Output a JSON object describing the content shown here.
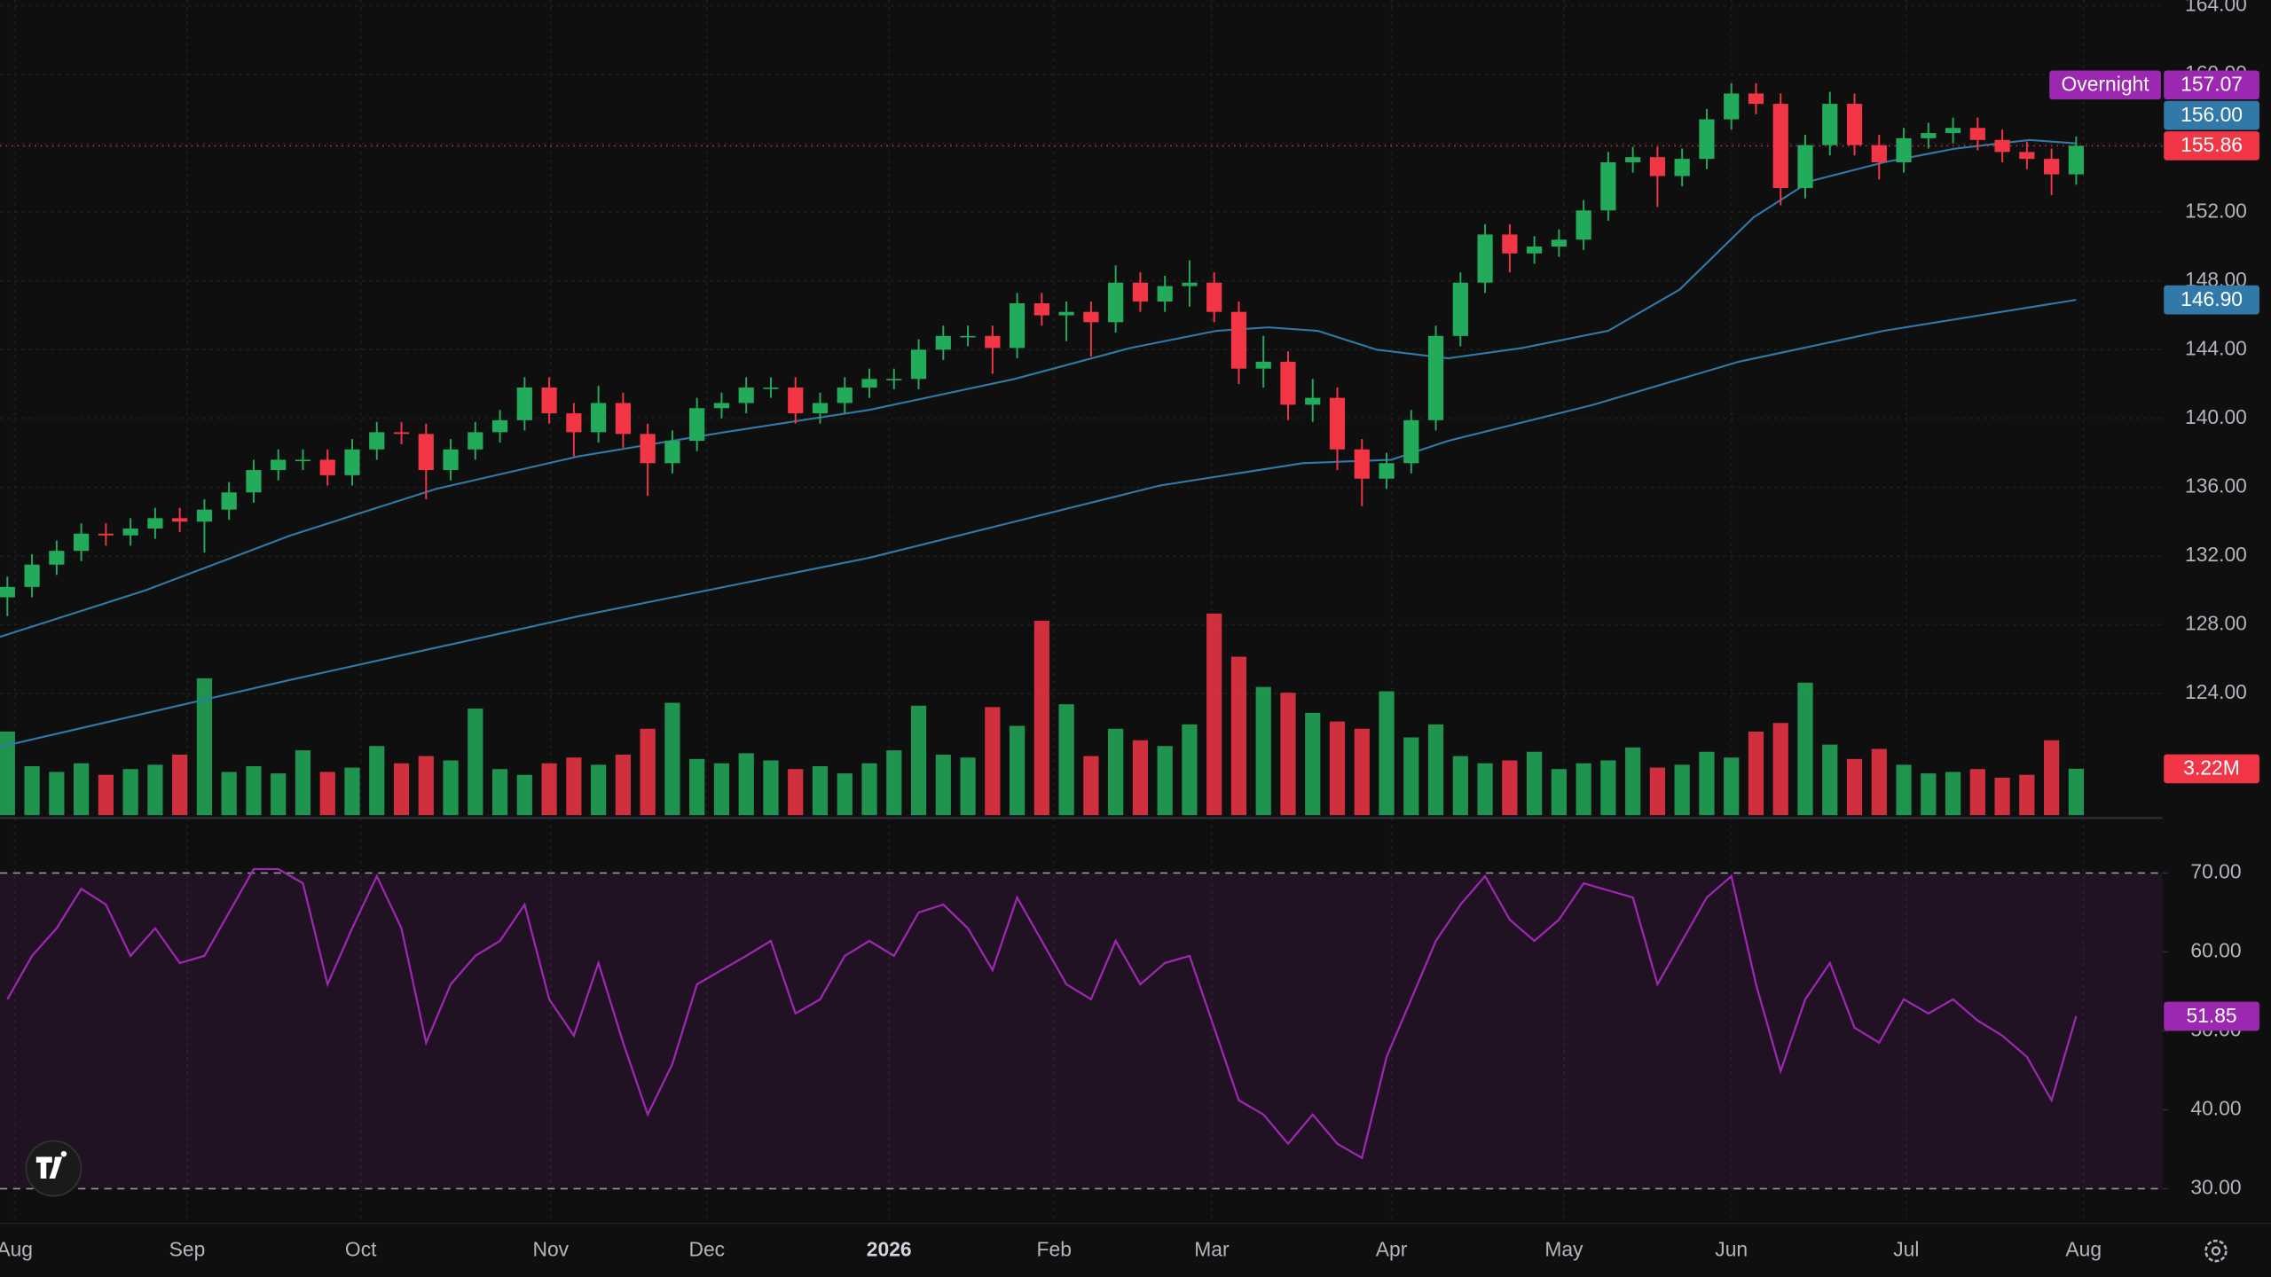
{
  "chart_data": {
    "type": "candlestick",
    "xlim": [
      -0.3,
      87.5
    ],
    "xticks": [
      {
        "value": 0.3,
        "label": "Aug"
      },
      {
        "value": 7.3,
        "label": "Sep"
      },
      {
        "value": 14.35,
        "label": "Oct"
      },
      {
        "value": 22.06,
        "label": "Nov"
      },
      {
        "value": 28.4,
        "label": "Dec"
      },
      {
        "value": 35.8,
        "label": "2026"
      },
      {
        "value": 42.5,
        "label": "Feb"
      },
      {
        "value": 48.9,
        "label": "Mar"
      },
      {
        "value": 56.2,
        "label": "Apr"
      },
      {
        "value": 63.2,
        "label": "May"
      },
      {
        "value": 70,
        "label": "Jun"
      },
      {
        "value": 77.1,
        "label": "Jul"
      },
      {
        "value": 84.3,
        "label": "Aug"
      }
    ],
    "ylim": [
      116.76,
      164.34
    ],
    "yticks": [
      {
        "value": 124,
        "label": "124.00"
      },
      {
        "value": 128,
        "label": "128.00"
      },
      {
        "value": 132,
        "label": "132.00"
      },
      {
        "value": 136,
        "label": "136.00"
      },
      {
        "value": 140,
        "label": "140.00"
      },
      {
        "value": 144,
        "label": "144.00"
      },
      {
        "value": 148,
        "label": "148.00"
      },
      {
        "value": 152,
        "label": "152.00"
      },
      {
        "value": 156,
        "label": "156.00"
      },
      {
        "value": 160,
        "label": "160.00"
      },
      {
        "value": 164,
        "label": "164.00"
      }
    ],
    "grid": true,
    "up_color": "#22ab5a",
    "down_color": "#f23645",
    "ohlc": {
      "open": [
        129.6,
        130.2,
        131.5,
        132.3,
        133.3,
        133.2,
        133.6,
        134.2,
        134.0,
        134.7,
        135.7,
        137.0,
        137.6,
        137.6,
        136.7,
        138.2,
        139.2,
        139.1,
        137.0,
        138.2,
        139.2,
        139.9,
        141.8,
        140.3,
        139.2,
        140.9,
        139.1,
        137.4,
        138.7,
        140.6,
        140.9,
        141.8,
        141.8,
        140.3,
        140.9,
        141.8,
        142.3,
        142.3,
        144.0,
        144.8,
        144.8,
        144.1,
        146.7,
        146.0,
        146.2,
        145.6,
        147.9,
        146.8,
        147.7,
        147.9,
        146.2,
        142.9,
        143.3,
        140.8,
        141.2,
        138.2,
        136.5,
        137.4,
        139.9,
        144.8,
        147.9,
        150.7,
        149.6,
        150.0,
        150.4,
        152.1,
        154.9,
        155.2,
        154.1,
        155.1,
        157.4,
        158.9,
        158.3,
        153.4,
        155.9,
        158.3,
        155.9,
        154.9,
        156.3,
        156.6,
        156.9,
        156.2,
        155.5,
        155.1,
        154.2
      ],
      "high": [
        130.8,
        132.1,
        132.9,
        133.9,
        133.9,
        134.2,
        134.8,
        134.8,
        135.3,
        136.3,
        137.6,
        138.2,
        138.2,
        138.2,
        138.8,
        139.8,
        139.8,
        139.7,
        138.8,
        139.8,
        140.5,
        142.4,
        142.4,
        140.9,
        141.9,
        141.5,
        139.7,
        139.3,
        141.2,
        141.5,
        142.4,
        142.4,
        142.4,
        141.5,
        142.4,
        142.9,
        142.9,
        144.6,
        145.4,
        145.4,
        145.4,
        147.3,
        147.3,
        146.8,
        146.8,
        148.9,
        148.5,
        148.3,
        149.2,
        148.5,
        146.8,
        144.8,
        143.9,
        142.3,
        141.8,
        138.8,
        138.0,
        140.5,
        145.4,
        148.5,
        151.3,
        151.3,
        150.6,
        151.0,
        152.7,
        155.5,
        155.8,
        155.8,
        155.7,
        158.0,
        159.5,
        159.5,
        158.9,
        156.5,
        159.0,
        158.9,
        156.5,
        156.9,
        157.2,
        157.5,
        157.5,
        156.8,
        156.1,
        155.7,
        156.4
      ],
      "low": [
        128.5,
        129.6,
        130.9,
        131.7,
        132.6,
        132.6,
        133.0,
        133.4,
        132.2,
        134.1,
        135.1,
        136.4,
        137.0,
        136.1,
        136.1,
        137.6,
        138.5,
        135.3,
        136.4,
        137.6,
        138.6,
        139.3,
        139.7,
        137.8,
        138.6,
        138.3,
        135.5,
        136.8,
        138.1,
        140.0,
        140.3,
        141.2,
        139.7,
        139.7,
        140.3,
        141.2,
        141.7,
        141.7,
        143.4,
        144.2,
        142.6,
        143.5,
        145.4,
        144.5,
        143.6,
        145.0,
        146.2,
        146.2,
        146.5,
        145.6,
        142.0,
        141.8,
        139.9,
        139.8,
        137.0,
        134.9,
        135.9,
        136.8,
        139.3,
        144.2,
        147.3,
        148.5,
        149.0,
        149.4,
        149.8,
        151.5,
        154.3,
        152.3,
        153.5,
        154.5,
        156.8,
        157.7,
        152.4,
        152.8,
        155.3,
        155.3,
        153.9,
        154.3,
        155.7,
        156.0,
        155.6,
        154.9,
        154.5,
        153.0,
        153.6
      ],
      "close": [
        130.2,
        131.5,
        132.3,
        133.3,
        133.2,
        133.6,
        134.2,
        134.0,
        134.7,
        135.7,
        137.0,
        137.6,
        137.6,
        136.7,
        138.2,
        139.2,
        139.1,
        137.0,
        138.2,
        139.2,
        139.9,
        141.8,
        140.3,
        139.2,
        140.9,
        139.1,
        137.4,
        138.7,
        140.6,
        140.9,
        141.8,
        141.8,
        140.3,
        140.9,
        141.8,
        142.3,
        142.3,
        144.0,
        144.8,
        144.8,
        144.1,
        146.7,
        146.0,
        146.2,
        145.6,
        147.9,
        146.8,
        147.7,
        147.9,
        146.2,
        142.9,
        143.3,
        140.8,
        141.2,
        138.2,
        136.5,
        137.4,
        139.9,
        144.8,
        147.9,
        150.7,
        149.6,
        150.0,
        150.4,
        152.1,
        154.9,
        155.2,
        154.1,
        155.1,
        157.4,
        158.9,
        158.3,
        153.4,
        155.9,
        158.3,
        155.9,
        154.9,
        156.3,
        156.6,
        156.9,
        156.2,
        155.5,
        155.1,
        154.2,
        155.86
      ]
    },
    "moving_averages": [
      {
        "color": "#3179a8",
        "x": [
          -0.3,
          5.6,
          11.5,
          17.4,
          23.2,
          29.1,
          35,
          40.9,
          45.6,
          49.1,
          51.2,
          53.2,
          55.6,
          58.5,
          61.5,
          65,
          67.9,
          70.9,
          73.2,
          76.2,
          79.1,
          82.1,
          84
        ],
        "values": [
          127.3,
          130.0,
          133.2,
          135.9,
          137.8,
          139.2,
          140.5,
          142.3,
          144.1,
          145.1,
          145.3,
          145.1,
          144.0,
          143.5,
          144.1,
          145.1,
          147.5,
          151.7,
          153.8,
          154.9,
          155.7,
          156.2,
          156.0
        ],
        "last_label": {
          "value": 156.0,
          "label": "156.00"
        }
      },
      {
        "color": "#3179a8",
        "x": [
          -0.3,
          11.5,
          23.2,
          35,
          46.8,
          52.6,
          56.2,
          58.5,
          64.4,
          70.3,
          76.2,
          84
        ],
        "values": [
          120.9,
          124.8,
          128.5,
          131.9,
          136.1,
          137.4,
          137.6,
          138.7,
          140.8,
          143.3,
          145.1,
          146.9
        ],
        "last_label": {
          "value": 146.9,
          "label": "146.90"
        }
      }
    ],
    "last_price": {
      "value": 155.86,
      "label": "155.86",
      "color": "#f23645"
    },
    "overnight": {
      "name": "Overnight",
      "value": 157.07,
      "label": "157.07",
      "color": "#9c27b0"
    },
    "volume": {
      "ylim": [
        0,
        56
      ],
      "values": [
        5.8,
        3.4,
        3.0,
        3.6,
        2.8,
        3.2,
        3.5,
        4.2,
        9.5,
        3.0,
        3.4,
        2.9,
        4.5,
        3.0,
        3.3,
        4.8,
        3.6,
        4.1,
        3.8,
        7.4,
        3.2,
        2.8,
        3.6,
        4.0,
        3.5,
        4.2,
        6.0,
        7.8,
        3.9,
        3.6,
        4.3,
        3.8,
        3.2,
        3.4,
        2.9,
        3.6,
        4.5,
        7.6,
        4.2,
        4.0,
        7.5,
        6.2,
        13.5,
        7.7,
        4.1,
        6.0,
        5.2,
        4.8,
        6.3,
        14.0,
        11.0,
        8.9,
        8.5,
        7.1,
        6.5,
        6.0,
        8.6,
        5.4,
        6.3,
        4.1,
        3.6,
        3.8,
        4.4,
        3.2,
        3.6,
        3.8,
        4.7,
        3.3,
        3.5,
        4.4,
        4.0,
        5.8,
        6.4,
        9.2,
        4.9,
        3.9,
        4.6,
        3.5,
        2.9,
        3.0,
        3.2,
        2.6,
        2.8,
        5.2,
        3.22
      ],
      "last_label": {
        "value": 3.22,
        "label": "3.22M"
      }
    },
    "rsi": {
      "color": "#9c27b0",
      "ylim": [
        25.6,
        76.97
      ],
      "yticks": [
        {
          "value": 30,
          "label": "30.00"
        },
        {
          "value": 40,
          "label": "40.00"
        },
        {
          "value": 50,
          "label": "50.00"
        },
        {
          "value": 60,
          "label": "60.00"
        },
        {
          "value": 70,
          "label": "70.00"
        }
      ],
      "band": [
        30,
        70
      ],
      "values": [
        54,
        59.5,
        63,
        68,
        66,
        59.5,
        63,
        58.6,
        59.5,
        65,
        70.5,
        70.5,
        68.7,
        55.9,
        63,
        69.6,
        63,
        48.5,
        55.9,
        59.5,
        61.4,
        66,
        54,
        49.4,
        58.6,
        48.5,
        39.4,
        45.8,
        55.9,
        57.7,
        59.5,
        61.4,
        52.2,
        54,
        59.5,
        61.4,
        59.5,
        65,
        66,
        63,
        57.7,
        66.9,
        61.4,
        55.9,
        54,
        61.4,
        55.9,
        58.6,
        59.5,
        50.4,
        41.2,
        39.4,
        35.7,
        39.4,
        35.7,
        33.9,
        46.7,
        54,
        61.4,
        66,
        69.6,
        64.1,
        61.4,
        64.1,
        68.7,
        67.8,
        66.9,
        55.9,
        61.4,
        66.9,
        69.6,
        55.9,
        44.9,
        54,
        58.6,
        50.4,
        48.5,
        54,
        52.2,
        54,
        51.3,
        49.4,
        46.7,
        41.2,
        51.85
      ],
      "last_label": {
        "value": 51.85,
        "label": "51.85"
      }
    }
  }
}
